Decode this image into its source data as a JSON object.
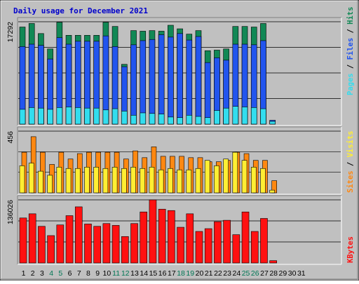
{
  "chart_data": [
    {
      "type": "bar",
      "title": "Daily usage for December 2021",
      "categories": [
        "1",
        "2",
        "3",
        "4",
        "5",
        "6",
        "7",
        "8",
        "9",
        "10",
        "11",
        "12",
        "13",
        "14",
        "15",
        "16",
        "17",
        "18",
        "19",
        "20",
        "21",
        "22",
        "23",
        "24",
        "25",
        "26",
        "27",
        "28",
        "29",
        "30",
        "31"
      ],
      "weekend_days": [
        "4",
        "5",
        "11",
        "12",
        "18",
        "19",
        "25",
        "26"
      ],
      "ymax_label": "17292",
      "ylim": [
        0,
        17292
      ],
      "legend": [
        "Pages",
        "Files",
        "Hits"
      ],
      "legend_colors": {
        "pages": "#33ddee",
        "files": "#2255ee",
        "hits": "#118855"
      },
      "series": [
        {
          "name": "Hits",
          "color": "#118855",
          "values": [
            16400,
            17000,
            15300,
            12700,
            17200,
            15000,
            15000,
            15000,
            15000,
            17200,
            16500,
            10100,
            15800,
            15700,
            15800,
            15700,
            16700,
            16100,
            15200,
            15800,
            12400,
            12500,
            12700,
            16500,
            16500,
            16400,
            17000,
            0,
            0,
            0,
            0
          ]
        },
        {
          "name": "Files",
          "color": "#2255ee",
          "values": [
            13100,
            13500,
            13300,
            11000,
            14600,
            13500,
            14000,
            14000,
            14000,
            14900,
            13100,
            9700,
            13400,
            14100,
            14300,
            15100,
            14700,
            15300,
            14200,
            14800,
            10400,
            11200,
            10800,
            13500,
            13500,
            13400,
            14100,
            660,
            0,
            0,
            0
          ]
        },
        {
          "name": "Pages",
          "color": "#33ddee",
          "values": [
            2500,
            2800,
            2700,
            2500,
            2800,
            2900,
            2800,
            2700,
            2700,
            2400,
            2600,
            2200,
            1500,
            1900,
            1800,
            1700,
            1200,
            1100,
            1500,
            1300,
            1100,
            2300,
            2700,
            3000,
            2900,
            2800,
            2600,
            460,
            0,
            0,
            0
          ]
        }
      ]
    },
    {
      "type": "bar",
      "categories": [
        "1",
        "2",
        "3",
        "4",
        "5",
        "6",
        "7",
        "8",
        "9",
        "10",
        "11",
        "12",
        "13",
        "14",
        "15",
        "16",
        "17",
        "18",
        "19",
        "20",
        "21",
        "22",
        "23",
        "24",
        "25",
        "26",
        "27",
        "28",
        "29",
        "30",
        "31"
      ],
      "ymax_label": "456",
      "ylim": [
        0,
        456
      ],
      "legend": [
        "Sites",
        "Visits"
      ],
      "legend_colors": {
        "sites": "#ff8811",
        "visits": "#ffee33"
      },
      "series": [
        {
          "name": "Visits",
          "color": "#ffee33",
          "values": [
            200,
            220,
            160,
            130,
            190,
            180,
            180,
            190,
            190,
            180,
            190,
            180,
            190,
            180,
            190,
            170,
            180,
            170,
            170,
            180,
            240,
            200,
            250,
            300,
            240,
            190,
            180,
            20,
            0,
            0,
            0
          ]
        },
        {
          "name": "Sites",
          "color": "#ff8811",
          "values": [
            300,
            415,
            300,
            210,
            300,
            250,
            290,
            300,
            300,
            300,
            300,
            250,
            310,
            260,
            340,
            270,
            270,
            270,
            260,
            260,
            230,
            230,
            240,
            300,
            290,
            240,
            240,
            90,
            0,
            0,
            0
          ]
        }
      ]
    },
    {
      "type": "bar",
      "categories": [
        "1",
        "2",
        "3",
        "4",
        "5",
        "6",
        "7",
        "8",
        "9",
        "10",
        "11",
        "12",
        "13",
        "14",
        "15",
        "16",
        "17",
        "18",
        "19",
        "20",
        "21",
        "22",
        "23",
        "24",
        "25",
        "26",
        "27",
        "28",
        "29",
        "30",
        "31"
      ],
      "ymax_label": "136026",
      "ylim": [
        0,
        136026
      ],
      "legend": [
        "KBytes"
      ],
      "legend_colors": {
        "kbytes": "#ff1111"
      },
      "series": [
        {
          "name": "KBytes",
          "color": "#ff1111",
          "values": [
            97000,
            106000,
            79000,
            59000,
            82000,
            102000,
            121000,
            84000,
            79000,
            85000,
            81000,
            57000,
            85000,
            110000,
            136026,
            116000,
            113000,
            77000,
            106000,
            68000,
            74000,
            89000,
            92000,
            61000,
            110000,
            68000,
            96000,
            5000,
            0,
            0,
            0
          ]
        }
      ]
    }
  ]
}
